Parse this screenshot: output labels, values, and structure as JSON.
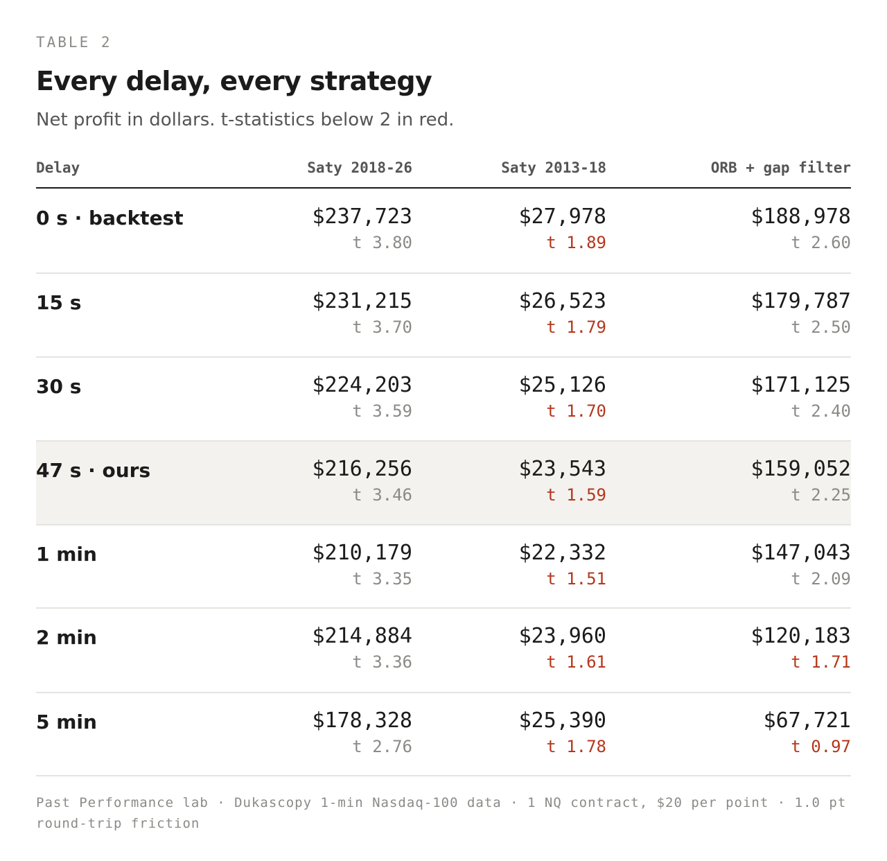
{
  "eyebrow": "TABLE 2",
  "title": "Every delay, every strategy",
  "subtitle": "Net profit in dollars. t-statistics below 2 in red.",
  "colors": {
    "text": "#1b1b1b",
    "muted": "#8a8a86",
    "low_t": "#b5371c",
    "highlight_row": "#f3f2ee"
  },
  "columns": [
    "Delay",
    "Saty 2018-26",
    "Saty 2013-18",
    "ORB + gap filter"
  ],
  "rows": [
    {
      "delay": "0 s · backtest",
      "highlight": false,
      "cells": [
        {
          "value": "$237,723",
          "t": "t 3.80",
          "low": false
        },
        {
          "value": "$27,978",
          "t": "t 1.89",
          "low": true
        },
        {
          "value": "$188,978",
          "t": "t 2.60",
          "low": false
        }
      ]
    },
    {
      "delay": "15 s",
      "highlight": false,
      "cells": [
        {
          "value": "$231,215",
          "t": "t 3.70",
          "low": false
        },
        {
          "value": "$26,523",
          "t": "t 1.79",
          "low": true
        },
        {
          "value": "$179,787",
          "t": "t 2.50",
          "low": false
        }
      ]
    },
    {
      "delay": "30 s",
      "highlight": false,
      "cells": [
        {
          "value": "$224,203",
          "t": "t 3.59",
          "low": false
        },
        {
          "value": "$25,126",
          "t": "t 1.70",
          "low": true
        },
        {
          "value": "$171,125",
          "t": "t 2.40",
          "low": false
        }
      ]
    },
    {
      "delay": "47 s · ours",
      "highlight": true,
      "cells": [
        {
          "value": "$216,256",
          "t": "t 3.46",
          "low": false
        },
        {
          "value": "$23,543",
          "t": "t 1.59",
          "low": true
        },
        {
          "value": "$159,052",
          "t": "t 2.25",
          "low": false
        }
      ]
    },
    {
      "delay": "1 min",
      "highlight": false,
      "cells": [
        {
          "value": "$210,179",
          "t": "t 3.35",
          "low": false
        },
        {
          "value": "$22,332",
          "t": "t 1.51",
          "low": true
        },
        {
          "value": "$147,043",
          "t": "t 2.09",
          "low": false
        }
      ]
    },
    {
      "delay": "2 min",
      "highlight": false,
      "cells": [
        {
          "value": "$214,884",
          "t": "t 3.36",
          "low": false
        },
        {
          "value": "$23,960",
          "t": "t 1.61",
          "low": true
        },
        {
          "value": "$120,183",
          "t": "t 1.71",
          "low": true
        }
      ]
    },
    {
      "delay": "5 min",
      "highlight": false,
      "cells": [
        {
          "value": "$178,328",
          "t": "t 2.76",
          "low": false
        },
        {
          "value": "$25,390",
          "t": "t 1.78",
          "low": true
        },
        {
          "value": "$67,721",
          "t": "t 0.97",
          "low": true
        }
      ]
    }
  ],
  "footnote": "Past Performance lab · Dukascopy 1-min Nasdaq-100 data · 1 NQ contract, $20 per point · 1.0 pt round-trip friction"
}
